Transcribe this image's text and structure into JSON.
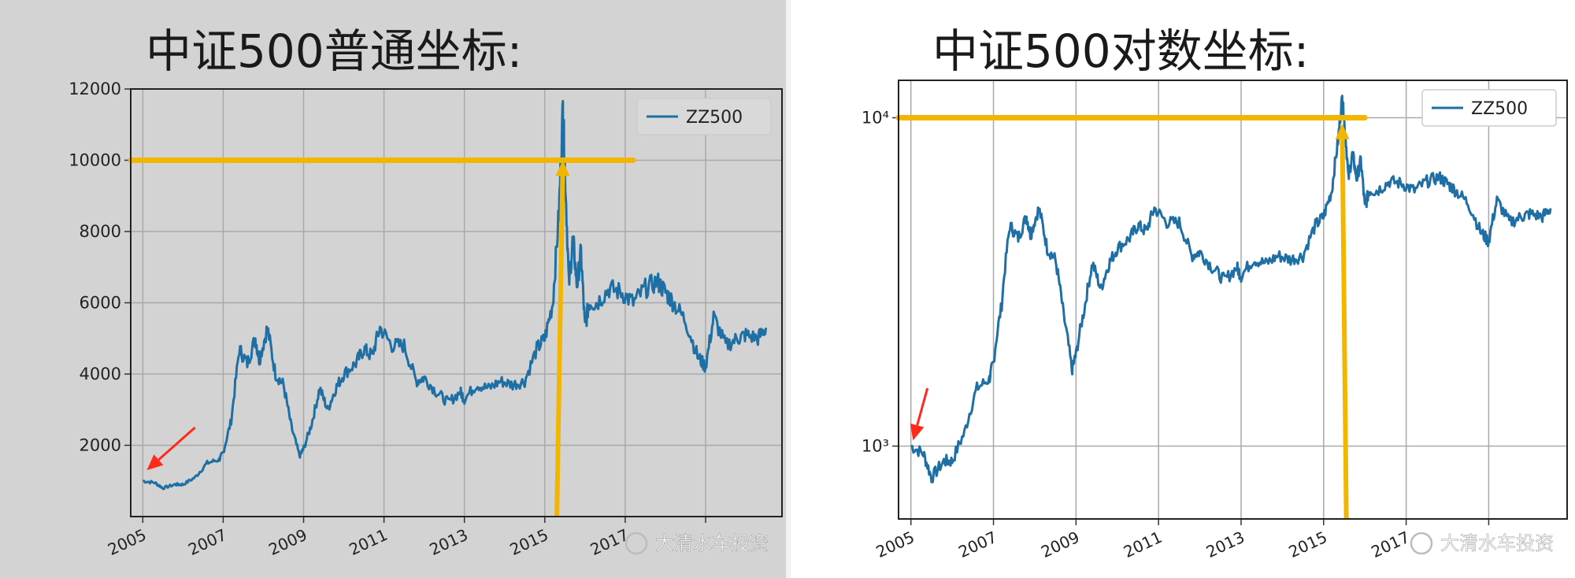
{
  "left": {
    "title": "中证500普通坐标:",
    "watermark": "大清水车投资"
  },
  "right": {
    "title": "中证500对数坐标:",
    "watermark": "大清水车投资"
  },
  "chart_data": [
    {
      "type": "line",
      "title": "中证500普通坐标:",
      "xlabel": "",
      "ylabel": "",
      "yscale": "linear",
      "xlim": [
        2004.7,
        2020.9
      ],
      "ylim": [
        0,
        12000
      ],
      "xticks": [
        2005,
        2007,
        2009,
        2011,
        2013,
        2015,
        2017,
        2019
      ],
      "xtick_labels": [
        "2005",
        "2007",
        "2009",
        "2011",
        "2013",
        "2015",
        "2017",
        ""
      ],
      "yticks": [
        2000,
        4000,
        6000,
        8000,
        10000,
        12000
      ],
      "ytick_labels": [
        "2000",
        "4000",
        "6000",
        "8000",
        "10000",
        "12000"
      ],
      "grid": true,
      "legend": "top-right",
      "series": [
        {
          "name": "ZZ500",
          "color": "#1f6fa5",
          "x": [
            2005.0,
            2005.3,
            2005.5,
            2005.8,
            2006.0,
            2006.3,
            2006.6,
            2006.9,
            2007.0,
            2007.2,
            2007.4,
            2007.6,
            2007.8,
            2007.9,
            2008.1,
            2008.3,
            2008.5,
            2008.7,
            2008.9,
            2009.0,
            2009.2,
            2009.4,
            2009.6,
            2009.8,
            2010.0,
            2010.3,
            2010.5,
            2010.7,
            2010.9,
            2011.2,
            2011.5,
            2011.8,
            2012.0,
            2012.3,
            2012.6,
            2012.9,
            2013.0,
            2013.3,
            2013.6,
            2013.9,
            2014.2,
            2014.5,
            2014.8,
            2015.0,
            2015.2,
            2015.35,
            2015.45,
            2015.5,
            2015.6,
            2015.7,
            2015.8,
            2015.9,
            2016.0,
            2016.1,
            2016.3,
            2016.6,
            2016.9,
            2017.2,
            2017.5,
            2017.8,
            2018.0,
            2018.2,
            2018.5,
            2018.8,
            2019.0,
            2019.2,
            2019.5,
            2019.8,
            2020.0,
            2020.3,
            2020.5
          ],
          "y": [
            1000,
            950,
            800,
            900,
            900,
            1100,
            1500,
            1600,
            1800,
            2700,
            4700,
            4300,
            5000,
            4400,
            5300,
            4000,
            3700,
            2500,
            1700,
            1900,
            2600,
            3600,
            3000,
            3600,
            4000,
            4300,
            4700,
            4500,
            5300,
            4800,
            4800,
            3800,
            3900,
            3500,
            3200,
            3500,
            3300,
            3700,
            3600,
            3800,
            3700,
            3800,
            4700,
            5000,
            6000,
            8500,
            11500,
            9800,
            6500,
            7800,
            6500,
            7400,
            5300,
            6000,
            6000,
            6400,
            6300,
            6000,
            6400,
            6600,
            6300,
            6000,
            5500,
            4500,
            4200,
            5600,
            4800,
            5000,
            5100,
            5000,
            5300
          ]
        }
      ],
      "annotations": [
        {
          "type": "hline",
          "y": 10000,
          "x_start": 2004.7,
          "x_end": 2017.2,
          "color": "#f2b600"
        },
        {
          "type": "arrow",
          "x_start": 2015.3,
          "y_start": 0,
          "x_end": 2015.45,
          "y_end": 10000,
          "color": "#f2b600"
        },
        {
          "type": "arrow",
          "x_start": 2006.3,
          "y_start": 2500,
          "x_end": 2005.1,
          "y_end": 1300,
          "color": "#ff2a1a"
        }
      ]
    },
    {
      "type": "line",
      "title": "中证500对数坐标:",
      "xlabel": "",
      "ylabel": "",
      "yscale": "log",
      "xlim": [
        2004.7,
        2020.9
      ],
      "ylim": [
        600,
        13000
      ],
      "xticks": [
        2005,
        2007,
        2009,
        2011,
        2013,
        2015,
        2017,
        2019
      ],
      "xtick_labels": [
        "2005",
        "2007",
        "2009",
        "2011",
        "2013",
        "2015",
        "2017",
        ""
      ],
      "yticks": [
        1000,
        10000
      ],
      "ytick_labels": [
        "10³",
        "10⁴"
      ],
      "grid": true,
      "legend": "top-right",
      "series": [
        {
          "name": "ZZ500",
          "color": "#1f6fa5",
          "x": [
            2005.0,
            2005.3,
            2005.5,
            2005.8,
            2006.0,
            2006.3,
            2006.6,
            2006.9,
            2007.0,
            2007.2,
            2007.4,
            2007.6,
            2007.8,
            2007.9,
            2008.1,
            2008.3,
            2008.5,
            2008.7,
            2008.9,
            2009.0,
            2009.2,
            2009.4,
            2009.6,
            2009.8,
            2010.0,
            2010.3,
            2010.5,
            2010.7,
            2010.9,
            2011.2,
            2011.5,
            2011.8,
            2012.0,
            2012.3,
            2012.6,
            2012.9,
            2013.0,
            2013.3,
            2013.6,
            2013.9,
            2014.2,
            2014.5,
            2014.8,
            2015.0,
            2015.2,
            2015.35,
            2015.45,
            2015.5,
            2015.6,
            2015.7,
            2015.8,
            2015.9,
            2016.0,
            2016.1,
            2016.3,
            2016.6,
            2016.9,
            2017.2,
            2017.5,
            2017.8,
            2018.0,
            2018.2,
            2018.5,
            2018.8,
            2019.0,
            2019.2,
            2019.5,
            2019.8,
            2020.0,
            2020.3,
            2020.5
          ],
          "y": [
            1000,
            950,
            800,
            900,
            900,
            1100,
            1500,
            1600,
            1800,
            2700,
            4700,
            4300,
            5000,
            4400,
            5300,
            4000,
            3700,
            2500,
            1700,
            1900,
            2600,
            3600,
            3000,
            3600,
            4000,
            4300,
            4700,
            4500,
            5300,
            4800,
            4800,
            3800,
            3900,
            3500,
            3200,
            3500,
            3300,
            3700,
            3600,
            3800,
            3700,
            3800,
            4700,
            5000,
            6000,
            8500,
            11500,
            9800,
            6500,
            7800,
            6500,
            7400,
            5300,
            6000,
            6000,
            6400,
            6300,
            6000,
            6400,
            6600,
            6300,
            6000,
            5500,
            4500,
            4200,
            5600,
            4800,
            5000,
            5100,
            5000,
            5300
          ]
        }
      ],
      "annotations": [
        {
          "type": "hline",
          "y": 10000,
          "x_start": 2004.7,
          "x_end": 2016.0,
          "color": "#f2b600"
        },
        {
          "type": "arrow",
          "x_start": 2015.55,
          "y_start": 600,
          "x_end": 2015.45,
          "y_end": 9600,
          "color": "#f2b600"
        },
        {
          "type": "arrow",
          "x_start": 2005.4,
          "y_start": 1500,
          "x_end": 2005.05,
          "y_end": 1040,
          "color": "#ff2a1a"
        }
      ]
    }
  ]
}
